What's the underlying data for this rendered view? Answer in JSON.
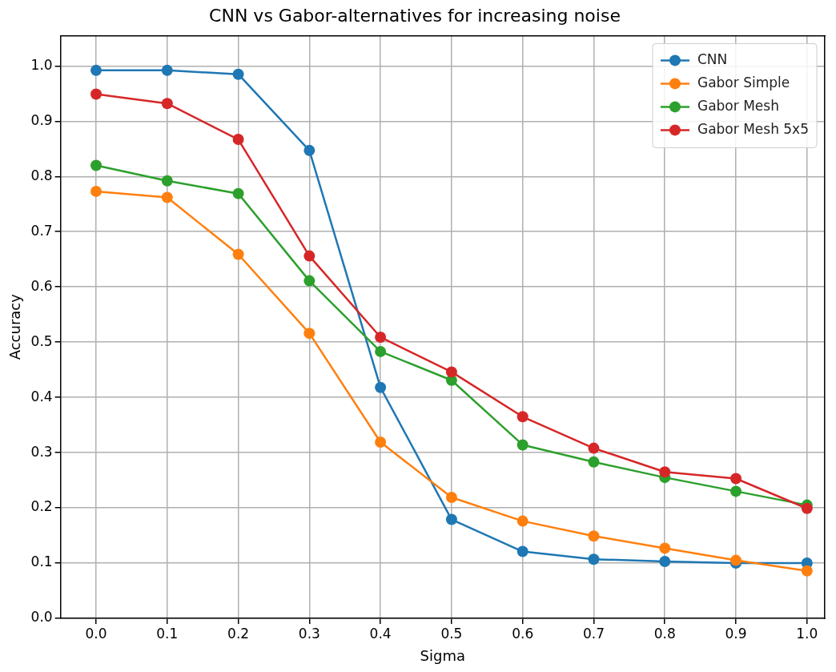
{
  "chart_data": {
    "type": "line",
    "title": "CNN vs Gabor-alternatives for increasing noise",
    "xlabel": "Sigma",
    "ylabel": "Accuracy",
    "x": [
      0,
      0.1,
      0.2,
      0.3,
      0.4,
      0.5,
      0.6,
      0.7,
      0.8,
      0.9,
      1.0
    ],
    "series": [
      {
        "name": "CNN",
        "color": "#1f77b4",
        "values": [
          0.992,
          0.992,
          0.985,
          0.847,
          0.418,
          0.179,
          0.121,
          0.107,
          0.103,
          0.1,
          0.1
        ]
      },
      {
        "name": "Gabor Simple",
        "color": "#ff7f0e",
        "values": [
          0.773,
          0.762,
          0.659,
          0.516,
          0.319,
          0.219,
          0.176,
          0.149,
          0.127,
          0.105,
          0.086
        ]
      },
      {
        "name": "Gabor Mesh",
        "color": "#2ca02c",
        "values": [
          0.82,
          0.792,
          0.769,
          0.611,
          0.483,
          0.431,
          0.314,
          0.283,
          0.255,
          0.23,
          0.205
        ]
      },
      {
        "name": "Gabor Mesh 5x5",
        "color": "#d62728",
        "values": [
          0.949,
          0.932,
          0.867,
          0.656,
          0.509,
          0.446,
          0.365,
          0.308,
          0.265,
          0.253,
          0.199
        ]
      }
    ],
    "xlim": [
      -0.05,
      1.025
    ],
    "ylim": [
      0,
      1.055
    ],
    "xticks": [
      {
        "value": 0,
        "label": "0.0"
      },
      0.1,
      0.2,
      0.3,
      0.4,
      0.5,
      0.6,
      0.7,
      0.8,
      0.9,
      {
        "value": 1,
        "label": "1.0"
      }
    ],
    "yticks": [
      {
        "value": 0,
        "label": "0.0"
      },
      0.1,
      0.2,
      0.3,
      0.4,
      0.5,
      0.6,
      0.7,
      0.8,
      0.9,
      {
        "value": 1,
        "label": "1.0"
      }
    ],
    "grid": true,
    "legend": "top right",
    "marker": "circle",
    "line_style": "solid"
  }
}
